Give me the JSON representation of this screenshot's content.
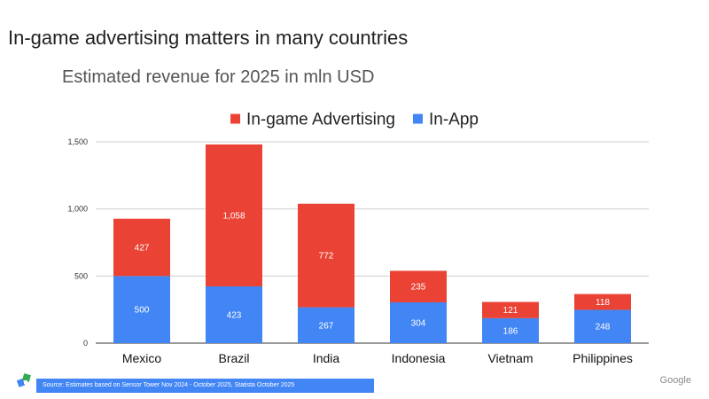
{
  "slide": {
    "title": "In-game advertising matters in many countries",
    "subtitle": "Estimated revenue for 2025 in mln USD",
    "source": "Source: Estimates based on Sensor Tower Nov 2024 - October  2025, Statista October  2025",
    "footer_brand": "Google"
  },
  "chart_data": {
    "type": "bar",
    "stacked": true,
    "categories": [
      "Mexico",
      "Brazil",
      "India",
      "Indonesia",
      "Vietnam",
      "Philippines"
    ],
    "series": [
      {
        "name": "In-App",
        "color": "#4285f4",
        "values": [
          500,
          423,
          267,
          304,
          186,
          248
        ]
      },
      {
        "name": "In-game Advertising",
        "color": "#ea4335",
        "values": [
          427,
          1058,
          772,
          235,
          121,
          118
        ]
      }
    ],
    "legend_order": [
      "In-game Advertising",
      "In-App"
    ],
    "legend_position": "top",
    "ylim": [
      0,
      1500
    ],
    "yticks": [
      0,
      500,
      1000,
      1500
    ],
    "ytick_labels": [
      "0",
      "500",
      "1,000",
      "1,500"
    ],
    "grid": true
  }
}
